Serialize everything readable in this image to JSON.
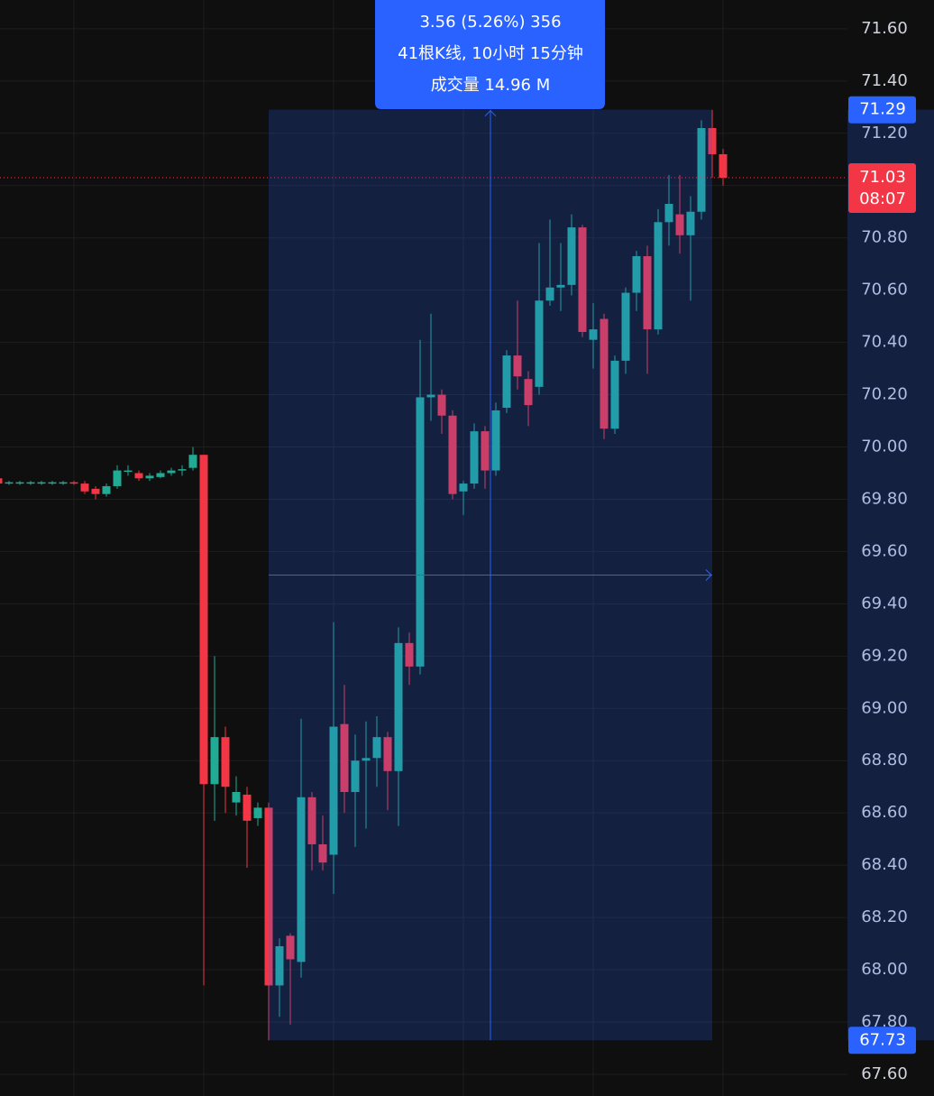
{
  "chart_data": {
    "type": "candlestick",
    "open": [
      69.88,
      69.86,
      69.86,
      69.86,
      69.86,
      69.86,
      69.86,
      69.865,
      69.86,
      69.84,
      69.82,
      69.85,
      69.905,
      69.9,
      69.88,
      69.885,
      69.9,
      69.91,
      69.92,
      69.97,
      68.71,
      68.89,
      68.64,
      68.67,
      68.58,
      68.62,
      67.94,
      68.13,
      68.03,
      68.66,
      68.48,
      68.44,
      68.94,
      68.68,
      68.8,
      68.81,
      68.89,
      68.76,
      69.25,
      69.16,
      70.19,
      70.2,
      70.12,
      69.83,
      69.86,
      70.06,
      69.91,
      70.15,
      70.35,
      70.26,
      70.23,
      70.56,
      70.61,
      70.62,
      70.84,
      70.41,
      70.49,
      70.07,
      70.33,
      70.59,
      70.73,
      70.45,
      70.86,
      70.89,
      70.81,
      70.9,
      71.22,
      71.12
    ],
    "high": [
      69.89,
      69.87,
      69.87,
      69.87,
      69.87,
      69.87,
      69.87,
      69.87,
      69.87,
      69.85,
      69.86,
      69.93,
      69.93,
      69.91,
      69.9,
      69.91,
      69.92,
      69.93,
      70.0,
      69.97,
      69.2,
      68.93,
      68.74,
      68.7,
      68.64,
      68.64,
      68.12,
      68.14,
      68.96,
      68.68,
      68.59,
      69.33,
      69.09,
      68.9,
      68.95,
      68.97,
      68.91,
      69.31,
      69.29,
      70.41,
      70.51,
      70.22,
      70.14,
      69.87,
      70.09,
      70.08,
      70.17,
      70.37,
      70.56,
      70.29,
      70.78,
      70.87,
      70.78,
      70.89,
      70.85,
      70.55,
      70.51,
      70.35,
      70.61,
      70.75,
      70.77,
      70.91,
      71.04,
      71.04,
      70.96,
      71.25,
      71.29,
      71.14
    ],
    "low": [
      69.85,
      69.855,
      69.855,
      69.855,
      69.855,
      69.855,
      69.855,
      69.855,
      69.82,
      69.8,
      69.81,
      69.84,
      69.89,
      69.87,
      69.87,
      69.88,
      69.89,
      69.89,
      69.91,
      67.94,
      68.57,
      68.6,
      68.59,
      68.39,
      68.55,
      67.73,
      67.82,
      67.79,
      67.97,
      68.38,
      68.38,
      68.29,
      68.6,
      68.47,
      68.54,
      68.7,
      68.61,
      68.55,
      69.09,
      69.13,
      70.1,
      70.05,
      69.8,
      69.74,
      69.84,
      69.84,
      69.89,
      70.13,
      70.22,
      70.08,
      70.2,
      70.54,
      70.52,
      70.58,
      70.42,
      70.3,
      70.03,
      70.05,
      70.28,
      70.52,
      70.28,
      70.43,
      70.77,
      70.74,
      70.56,
      70.87,
      71.03,
      71.0
    ],
    "close": [
      69.86,
      69.865,
      69.865,
      69.865,
      69.865,
      69.865,
      69.865,
      69.86,
      69.83,
      69.82,
      69.85,
      69.91,
      69.91,
      69.88,
      69.89,
      69.9,
      69.91,
      69.915,
      69.97,
      68.71,
      68.89,
      68.7,
      68.68,
      68.57,
      68.62,
      67.94,
      68.09,
      68.04,
      68.66,
      68.48,
      68.41,
      68.93,
      68.68,
      68.8,
      68.81,
      68.89,
      68.76,
      69.25,
      69.16,
      70.19,
      70.2,
      70.12,
      69.82,
      69.86,
      70.06,
      69.91,
      70.14,
      70.35,
      70.27,
      70.16,
      70.56,
      70.61,
      70.62,
      70.84,
      70.44,
      70.45,
      70.07,
      70.33,
      70.59,
      70.73,
      70.45,
      70.86,
      70.93,
      70.81,
      70.9,
      71.22,
      71.12,
      71.03
    ],
    "up_color": "#22ab94",
    "down_color": "#f23645",
    "ylim": [
      67.517,
      71.71
    ],
    "yticks": [
      {
        "value": 71.6,
        "label": "71.60"
      },
      {
        "value": 71.4,
        "label": "71.40"
      },
      {
        "value": 71.2,
        "label": "71.20"
      },
      {
        "value": 71.0,
        "label": "71.00"
      },
      {
        "value": 70.8,
        "label": "70.80"
      },
      {
        "value": 70.6,
        "label": "70.60"
      },
      {
        "value": 70.4,
        "label": "70.40"
      },
      {
        "value": 70.2,
        "label": "70.20"
      },
      {
        "value": 70.0,
        "label": "70.00"
      },
      {
        "value": 69.8,
        "label": "69.80"
      },
      {
        "value": 69.6,
        "label": "69.60"
      },
      {
        "value": 69.4,
        "label": "69.40"
      },
      {
        "value": 69.2,
        "label": "69.20"
      },
      {
        "value": 69.0,
        "label": "69.00"
      },
      {
        "value": 68.8,
        "label": "68.80"
      },
      {
        "value": 68.6,
        "label": "68.60"
      },
      {
        "value": 68.4,
        "label": "68.40"
      },
      {
        "value": 68.2,
        "label": "68.20"
      },
      {
        "value": 68.0,
        "label": "68.00"
      },
      {
        "value": 67.8,
        "label": "67.80"
      },
      {
        "value": 67.6,
        "label": "67.60"
      }
    ],
    "grid": true,
    "last_price": 71.03,
    "countdown": "08:07",
    "measure": {
      "high": 71.29,
      "low": 67.73,
      "lines": [
        "3.56 (5.26%) 356",
        "41根K线, 10小时 15分钟",
        "成交量 14.96 M"
      ]
    }
  }
}
